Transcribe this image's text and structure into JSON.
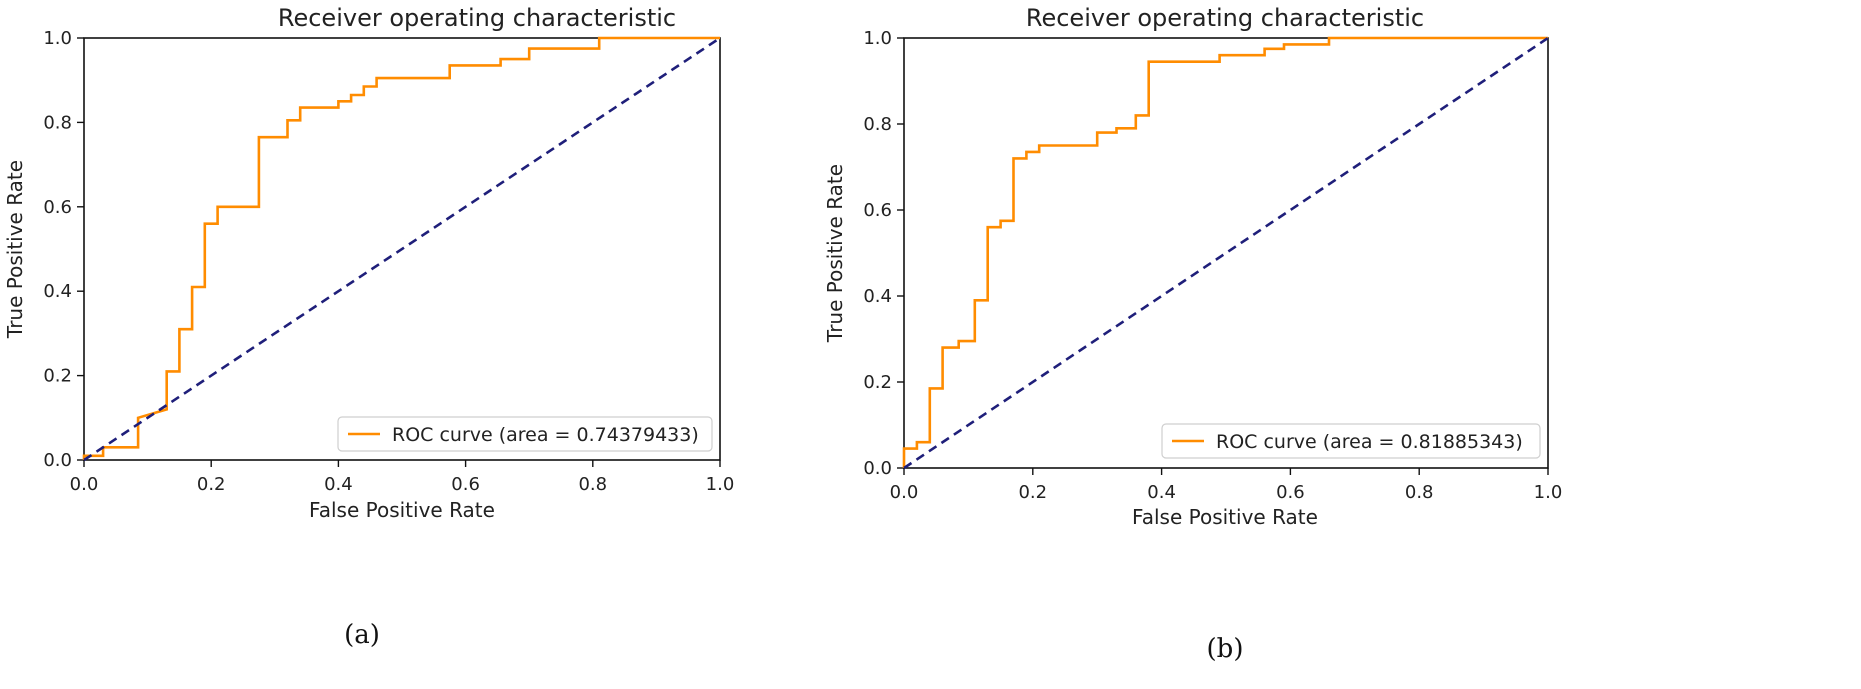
{
  "figure": {
    "captions": [
      "(a)",
      "(b)"
    ]
  },
  "colors": {
    "roc": "#ff8c00",
    "diagonal": "#1f1f7a",
    "axis": "#111111"
  },
  "chart_data": [
    {
      "type": "line",
      "title": "Receiver operating characteristic",
      "xlabel": "False Positive Rate",
      "ylabel": "True Positive Rate",
      "xlim": [
        0.0,
        1.0
      ],
      "ylim": [
        0.0,
        1.0
      ],
      "xticks": [
        "0.0",
        "0.2",
        "0.4",
        "0.6",
        "0.8",
        "1.0"
      ],
      "yticks": [
        "0.0",
        "0.2",
        "0.4",
        "0.6",
        "0.8",
        "1.0"
      ],
      "grid": false,
      "legend_position": "lower-right",
      "series": [
        {
          "name": "ROC curve (area = 0.74379433)",
          "style": "solid",
          "x": [
            0.0,
            0.0,
            0.03,
            0.03,
            0.085,
            0.085,
            0.13,
            0.13,
            0.15,
            0.15,
            0.17,
            0.17,
            0.19,
            0.19,
            0.21,
            0.21,
            0.275,
            0.275,
            0.32,
            0.32,
            0.34,
            0.34,
            0.4,
            0.4,
            0.42,
            0.42,
            0.44,
            0.44,
            0.46,
            0.46,
            0.48,
            0.48,
            0.575,
            0.575,
            0.655,
            0.655,
            0.7,
            0.7,
            0.81,
            0.81,
            1.0
          ],
          "y": [
            0.0,
            0.01,
            0.01,
            0.03,
            0.03,
            0.1,
            0.12,
            0.21,
            0.21,
            0.31,
            0.31,
            0.41,
            0.41,
            0.56,
            0.56,
            0.6,
            0.6,
            0.765,
            0.765,
            0.805,
            0.805,
            0.835,
            0.835,
            0.85,
            0.85,
            0.865,
            0.865,
            0.885,
            0.885,
            0.905,
            0.905,
            0.905,
            0.905,
            0.935,
            0.935,
            0.95,
            0.95,
            0.975,
            0.975,
            1.0,
            1.0
          ]
        },
        {
          "name": "",
          "style": "dashed",
          "x": [
            0.0,
            1.0
          ],
          "y": [
            0.0,
            1.0
          ]
        }
      ]
    },
    {
      "type": "line",
      "title": "Receiver operating characteristic",
      "xlabel": "False Positive Rate",
      "ylabel": "True Positive Rate",
      "xlim": [
        0.0,
        1.0
      ],
      "ylim": [
        0.0,
        1.0
      ],
      "xticks": [
        "0.0",
        "0.2",
        "0.4",
        "0.6",
        "0.8",
        "1.0"
      ],
      "yticks": [
        "0.0",
        "0.2",
        "0.4",
        "0.6",
        "0.8",
        "1.0"
      ],
      "grid": false,
      "legend_position": "lower-right",
      "series": [
        {
          "name": "ROC curve (area = 0.81885343)",
          "style": "solid",
          "x": [
            0.0,
            0.0,
            0.02,
            0.02,
            0.04,
            0.04,
            0.06,
            0.06,
            0.085,
            0.085,
            0.11,
            0.11,
            0.13,
            0.13,
            0.15,
            0.15,
            0.17,
            0.17,
            0.19,
            0.19,
            0.21,
            0.21,
            0.3,
            0.3,
            0.33,
            0.33,
            0.36,
            0.36,
            0.38,
            0.38,
            0.49,
            0.49,
            0.56,
            0.56,
            0.59,
            0.59,
            0.66,
            0.66,
            1.0
          ],
          "y": [
            0.0,
            0.045,
            0.045,
            0.06,
            0.06,
            0.185,
            0.185,
            0.28,
            0.28,
            0.295,
            0.295,
            0.39,
            0.39,
            0.56,
            0.56,
            0.575,
            0.575,
            0.72,
            0.72,
            0.735,
            0.735,
            0.75,
            0.75,
            0.78,
            0.78,
            0.79,
            0.79,
            0.82,
            0.82,
            0.945,
            0.945,
            0.96,
            0.96,
            0.975,
            0.975,
            0.985,
            0.985,
            1.0,
            1.0
          ]
        },
        {
          "name": "",
          "style": "dashed",
          "x": [
            0.0,
            1.0
          ],
          "y": [
            0.0,
            1.0
          ]
        }
      ]
    }
  ]
}
